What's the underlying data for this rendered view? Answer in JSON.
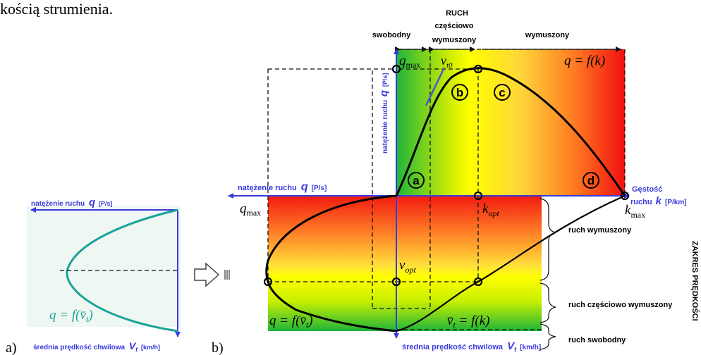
{
  "header_fragment": "kością strumienia.",
  "panel_a": {
    "letter": "a)",
    "axis_top": "natężenie ruchu",
    "axis_top_symbol": "q",
    "axis_top_unit": "[P/s]",
    "axis_bottom": "średnia prędkość chwilowa",
    "axis_bottom_symbol": "V",
    "axis_bottom_sub": "t",
    "axis_bottom_unit": "[km/h]",
    "formula": "q = f(v̄",
    "formula_sub": "t",
    "formula_close": ")",
    "curve_color": "#1aa39a"
  },
  "panel_b": {
    "letter": "b)",
    "ruch": "RUCH",
    "regime_free": "swobodny",
    "regime_partial_1": "częściowo",
    "regime_partial_2": "wymuszony",
    "regime_forced": "wymuszony",
    "q_axis_vertical": "natężenie ruchu",
    "q_axis_vertical_symbol": "q",
    "q_axis_vertical_unit": "[P/s]",
    "q_axis_left": "natężenie ruchu",
    "q_axis_left_symbol": "q",
    "q_axis_left_unit": "[P/s]",
    "k_axis_1": "Gęstość",
    "k_axis_2": "ruchu",
    "k_axis_symbol": "k",
    "k_axis_unit": "[P/km]",
    "v_axis": "średnia prędkość chwilowa",
    "v_axis_symbol": "V",
    "v_axis_sub": "t",
    "v_axis_unit": "[km/h]",
    "q_max_top": "q",
    "q_max_top_sub": "max",
    "q_max_left": "q",
    "q_max_left_sub": "max",
    "v_t0": "v",
    "v_t0_sub": "t0",
    "k_opt": "k",
    "k_opt_sub": "opt",
    "k_max": "k",
    "k_max_sub": "max",
    "v_opt": "v",
    "v_opt_sub": "opt",
    "f_qk": "q = f(k)",
    "f_qv_1": "q = f(v̄",
    "f_qv_sub": "t",
    "f_qv_2": ")",
    "f_vk_1": "v̄",
    "f_vk_sub": "t",
    "f_vk_2": " = f(k)",
    "zone_a": "a",
    "zone_b": "b",
    "zone_c": "c",
    "zone_d": "d",
    "ruch_wymuszony": "ruch wymuszony",
    "ruch_czesciowo": "ruch częściowo wymuszony",
    "ruch_swobodny": "ruch swobodny",
    "zakres": "ZAKRES PRĘDKOŚCI",
    "axis_color": "#3a3adc"
  }
}
